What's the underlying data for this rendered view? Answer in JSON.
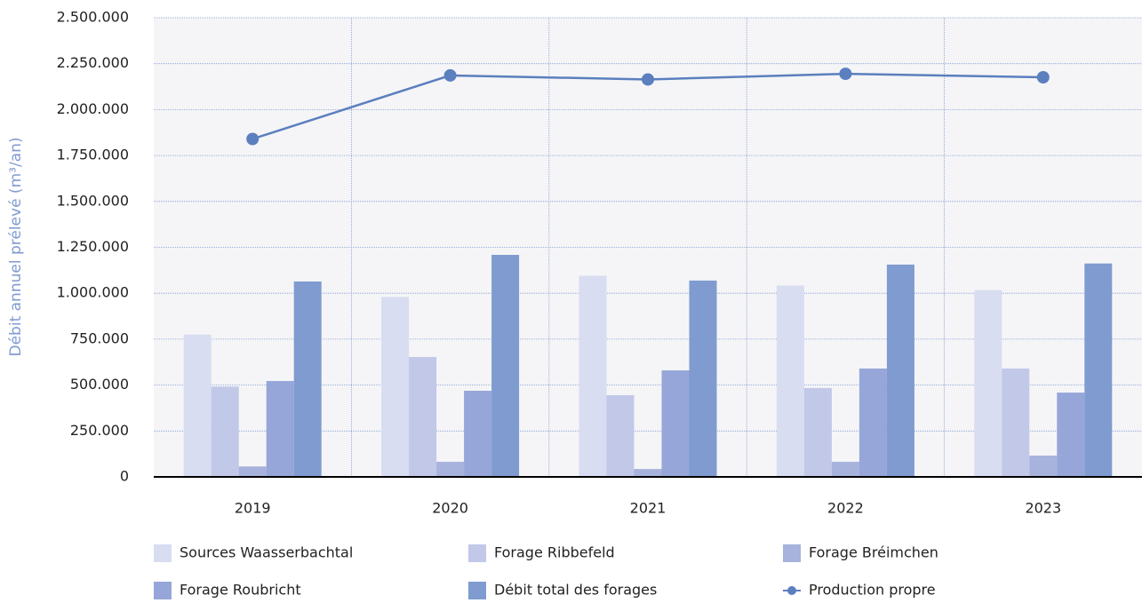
{
  "chart_data": {
    "type": "bar",
    "ylabel": "Débit annuel prélevé (m³/an)",
    "categories": [
      "2019",
      "2020",
      "2021",
      "2022",
      "2023"
    ],
    "series": [
      {
        "name": "Sources Waasserbachtal",
        "color": "#d8ddf1",
        "values": [
          775000,
          980000,
          1095000,
          1042000,
          1017000
        ]
      },
      {
        "name": "Forage Ribbefeld",
        "color": "#c2c8e8",
        "values": [
          492000,
          653000,
          445000,
          484000,
          590000
        ]
      },
      {
        "name": "Forage Bréimchen",
        "color": "#a7b2dd",
        "values": [
          57000,
          82000,
          43000,
          82000,
          116000
        ]
      },
      {
        "name": "Forage Roubricht",
        "color": "#96a6d8",
        "values": [
          522000,
          469000,
          580000,
          590000,
          459000
        ]
      },
      {
        "name": "Débit total des forages",
        "color": "#7f9bd0",
        "values": [
          1064000,
          1209000,
          1069000,
          1156000,
          1162000
        ]
      },
      {
        "name": "Production propre",
        "color": "#5b7fbf",
        "type": "line",
        "values": [
          1840000,
          2186000,
          2164000,
          2195000,
          2176000
        ]
      }
    ],
    "ylim": [
      0,
      2500000
    ],
    "yticks": [
      0,
      {
        "value": 250000,
        "label": "250.000"
      },
      {
        "value": 500000,
        "label": "500.000"
      },
      {
        "value": 750000,
        "label": "750.000"
      },
      {
        "value": 1000000,
        "label": "1.000.000"
      },
      {
        "value": 1250000,
        "label": "1.250.000"
      },
      {
        "value": 1500000,
        "label": "1.500.000"
      },
      {
        "value": 1750000,
        "label": "1.750.000"
      },
      {
        "value": 2000000,
        "label": "2.000.000"
      },
      {
        "value": 2250000,
        "label": "2.250.000"
      },
      {
        "value": 2500000,
        "label": "2.500.000"
      }
    ],
    "grid": true
  }
}
